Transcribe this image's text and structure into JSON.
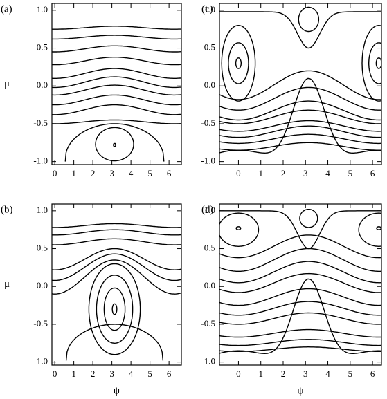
{
  "chart_data": [
    {
      "type": "contour",
      "panel_label": "(a)",
      "ylabel": "μ",
      "xlim": [
        -0.15,
        6.65
      ],
      "ylim": [
        -1.04,
        1.09
      ],
      "xticks": [
        0,
        1,
        2,
        3,
        4,
        5,
        6
      ],
      "yticks": [
        {
          "value": 1.0,
          "label": "1.0"
        },
        {
          "value": 0.5,
          "label": "0.5"
        },
        {
          "value": 0.0,
          "label": "0.0"
        },
        {
          "value": -0.5,
          "label": "-0.5"
        },
        {
          "value": -1.0,
          "label": "-1.0"
        }
      ]
    },
    {
      "type": "contour",
      "panel_label": "(c)",
      "xlim": [
        -0.85,
        6.4
      ],
      "ylim": [
        -1.04,
        1.09
      ],
      "xticks": [
        0,
        1,
        2,
        3,
        4,
        5,
        6
      ],
      "yticks": [
        {
          "value": 1.0,
          "label": "1.0"
        },
        {
          "value": 0.5,
          "label": "0.5"
        },
        {
          "value": 0.0,
          "label": "0.0"
        },
        {
          "value": -0.5,
          "label": "-0.5"
        },
        {
          "value": -1.0,
          "label": "-1.0"
        }
      ]
    },
    {
      "type": "contour",
      "panel_label": "(b)",
      "ylabel": "μ",
      "xlabel": "ψ",
      "xlim": [
        -0.15,
        6.65
      ],
      "ylim": [
        -1.04,
        1.09
      ],
      "xticks": [
        0,
        1,
        2,
        3,
        4,
        5,
        6
      ],
      "yticks": [
        {
          "value": 1.0,
          "label": "1.0"
        },
        {
          "value": 0.5,
          "label": "0.5"
        },
        {
          "value": 0.0,
          "label": "0.0"
        },
        {
          "value": -0.5,
          "label": "-0.5"
        },
        {
          "value": -1.0,
          "label": "-1.0"
        }
      ]
    },
    {
      "type": "contour",
      "panel_label": "(d)",
      "xlabel": "ψ",
      "xlim": [
        -0.85,
        6.4
      ],
      "ylim": [
        -1.04,
        1.09
      ],
      "xticks": [
        0,
        1,
        2,
        3,
        4,
        5,
        6
      ],
      "yticks": [
        {
          "value": 1.0,
          "label": "1.0"
        },
        {
          "value": 0.5,
          "label": "0.5"
        },
        {
          "value": 0.0,
          "label": "0.0"
        },
        {
          "value": -0.5,
          "label": "-0.5"
        },
        {
          "value": -1.0,
          "label": "-1.0"
        }
      ]
    }
  ]
}
